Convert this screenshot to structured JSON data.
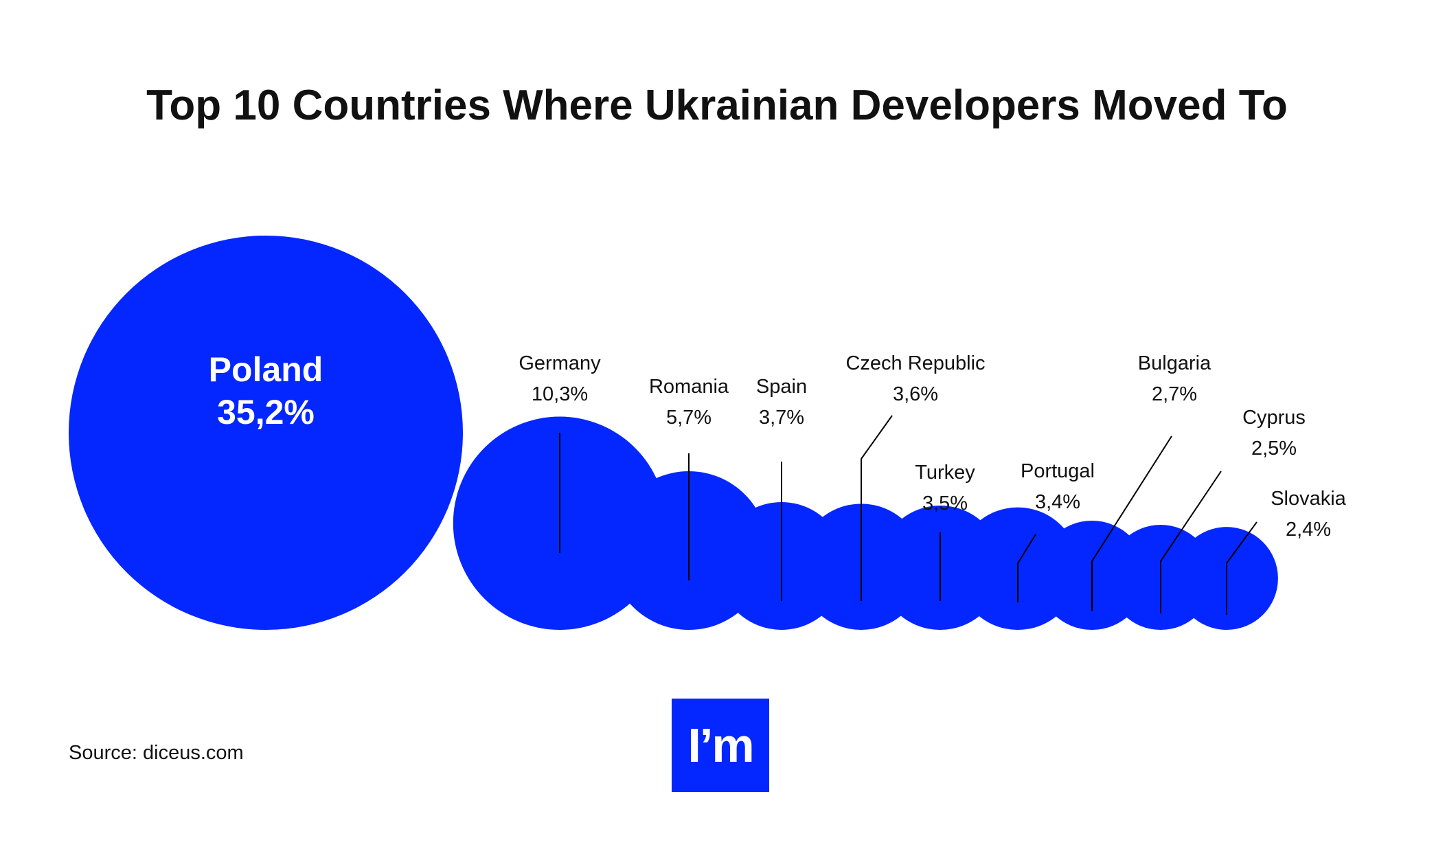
{
  "title": "Top 10 Countries Where Ukrainian Developers Moved To",
  "source": "Source: diceus.com",
  "logo_text": "I’m",
  "colors": {
    "bubble": "#0527ff",
    "text": "#111111",
    "label_on_bubble": "#ffffff"
  },
  "chart_data": {
    "type": "bubble",
    "title": "Top 10 Countries Where Ukrainian Developers Moved To",
    "unit": "%",
    "categories": [
      "Poland",
      "Germany",
      "Romania",
      "Spain",
      "Czech Republic",
      "Turkey",
      "Portugal",
      "Bulgaria",
      "Cyprus",
      "Slovakia"
    ],
    "values": [
      35.2,
      10.3,
      5.7,
      3.7,
      3.6,
      3.5,
      3.4,
      2.7,
      2.5,
      2.4
    ],
    "value_labels": [
      "35,2%",
      "10,3%",
      "5,7%",
      "3,7%",
      "3,6%",
      "3,5%",
      "3,4%",
      "2,7%",
      "2,5%",
      "2,4%"
    ]
  }
}
